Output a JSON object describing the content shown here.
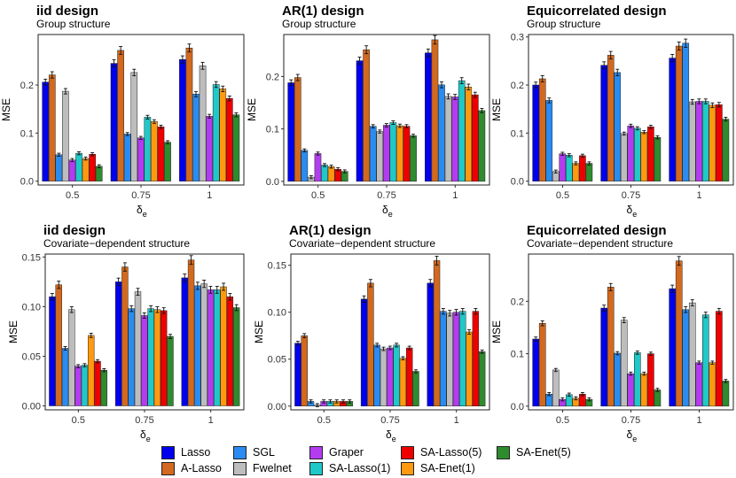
{
  "chart_data": {
    "type": "bar",
    "methods": [
      {
        "name": "Lasso",
        "color": "#0000ee"
      },
      {
        "name": "A-Lasso",
        "color": "#d2691e"
      },
      {
        "name": "SGL",
        "color": "#2a8cf0"
      },
      {
        "name": "Fwelnet",
        "color": "#bdbdbd"
      },
      {
        "name": "Graper",
        "color": "#b33cf0"
      },
      {
        "name": "SA-Lasso(1)",
        "color": "#20c8c8"
      },
      {
        "name": "SA-Enet(1)",
        "color": "#ff9a10"
      },
      {
        "name": "SA-Lasso(5)",
        "color": "#ee0000"
      },
      {
        "name": "SA-Enet(5)",
        "color": "#2e8b2e"
      }
    ],
    "panels": [
      {
        "title": "iid design",
        "subtitle": "Group structure",
        "xlabel": "δe",
        "ylabel": "MSE",
        "ylim": [
          -0.008,
          0.305
        ],
        "yticks": [
          0.0,
          0.1,
          0.2
        ],
        "ytick_labels": [
          "0.0",
          "0.1",
          "0.2"
        ],
        "categories": [
          "0.5",
          "0.75",
          "1"
        ],
        "values": [
          [
            0.206,
            0.221,
            0.055,
            0.187,
            0.044,
            0.058,
            0.047,
            0.056,
            0.031
          ],
          [
            0.245,
            0.272,
            0.098,
            0.226,
            0.09,
            0.133,
            0.124,
            0.113,
            0.081
          ],
          [
            0.253,
            0.277,
            0.181,
            0.24,
            0.135,
            0.201,
            0.192,
            0.172,
            0.138
          ]
        ]
      },
      {
        "title": "AR(1) design",
        "subtitle": "Group structure",
        "xlabel": "δe",
        "ylabel": "MSE",
        "ylim": [
          -0.007,
          0.28
        ],
        "yticks": [
          0.0,
          0.1,
          0.2
        ],
        "ytick_labels": [
          "0.0",
          "0.1",
          "0.2"
        ],
        "categories": [
          "0.5",
          "0.75",
          "1"
        ],
        "values": [
          [
            0.188,
            0.198,
            0.059,
            0.008,
            0.053,
            0.031,
            0.028,
            0.023,
            0.019
          ],
          [
            0.23,
            0.251,
            0.105,
            0.095,
            0.107,
            0.112,
            0.106,
            0.105,
            0.087
          ],
          [
            0.245,
            0.27,
            0.184,
            0.162,
            0.161,
            0.192,
            0.18,
            0.165,
            0.135
          ]
        ]
      },
      {
        "title": "Equicorrelated design",
        "subtitle": "Group structure",
        "xlabel": "δe",
        "ylabel": "MSE",
        "ylim": [
          -0.008,
          0.305
        ],
        "yticks": [
          0.0,
          0.1,
          0.2,
          0.3
        ],
        "ytick_labels": [
          "0.0",
          "0.1",
          "0.2",
          "0.3"
        ],
        "categories": [
          "0.5",
          "0.75",
          "1"
        ],
        "values": [
          [
            0.2,
            0.213,
            0.168,
            0.02,
            0.057,
            0.054,
            0.037,
            0.053,
            0.037
          ],
          [
            0.241,
            0.262,
            0.226,
            0.099,
            0.115,
            0.11,
            0.102,
            0.113,
            0.091
          ],
          [
            0.256,
            0.281,
            0.287,
            0.165,
            0.166,
            0.166,
            0.158,
            0.159,
            0.129
          ]
        ]
      },
      {
        "title": "iid design",
        "subtitle": "Covariate−dependent structure",
        "xlabel": "δe",
        "ylabel": "MSE",
        "ylim": [
          -0.004,
          0.153
        ],
        "yticks": [
          0.0,
          0.05,
          0.1,
          0.15
        ],
        "ytick_labels": [
          "0.00",
          "0.05",
          "0.10",
          "0.15"
        ],
        "categories": [
          "0.5",
          "0.75",
          "1"
        ],
        "values": [
          [
            0.11,
            0.122,
            0.058,
            0.097,
            0.04,
            0.041,
            0.071,
            0.045,
            0.036
          ],
          [
            0.125,
            0.14,
            0.098,
            0.115,
            0.091,
            0.098,
            0.097,
            0.096,
            0.07
          ],
          [
            0.129,
            0.147,
            0.121,
            0.123,
            0.117,
            0.117,
            0.12,
            0.11,
            0.099
          ]
        ]
      },
      {
        "title": "AR(1) design",
        "subtitle": "Covariate−dependent structure",
        "xlabel": "δe",
        "ylabel": "MSE",
        "ylim": [
          -0.004,
          0.162
        ],
        "yticks": [
          0.0,
          0.05,
          0.1,
          0.15
        ],
        "ytick_labels": [
          "0.00",
          "0.05",
          "0.10",
          "0.15"
        ],
        "categories": [
          "0.5",
          "0.75",
          "1"
        ],
        "values": [
          [
            0.067,
            0.075,
            0.005,
            0.001,
            0.005,
            0.005,
            0.005,
            0.005,
            0.005
          ],
          [
            0.114,
            0.131,
            0.065,
            0.061,
            0.062,
            0.065,
            0.051,
            0.062,
            0.037
          ],
          [
            0.131,
            0.155,
            0.101,
            0.099,
            0.1,
            0.101,
            0.079,
            0.101,
            0.058
          ]
        ]
      },
      {
        "title": "Equicorrelated design",
        "subtitle": "Covariate−dependent structure",
        "xlabel": "δe",
        "ylabel": "MSE",
        "ylim": [
          -0.007,
          0.29
        ],
        "yticks": [
          0.0,
          0.1,
          0.2
        ],
        "ytick_labels": [
          "0.0",
          "0.1",
          "0.2"
        ],
        "categories": [
          "0.5",
          "0.75",
          "1"
        ],
        "values": [
          [
            0.128,
            0.158,
            0.023,
            0.069,
            0.013,
            0.022,
            0.015,
            0.023,
            0.013
          ],
          [
            0.187,
            0.227,
            0.101,
            0.164,
            0.062,
            0.102,
            0.062,
            0.1,
            0.031
          ],
          [
            0.224,
            0.277,
            0.184,
            0.197,
            0.083,
            0.174,
            0.083,
            0.181,
            0.048
          ]
        ]
      }
    ]
  }
}
